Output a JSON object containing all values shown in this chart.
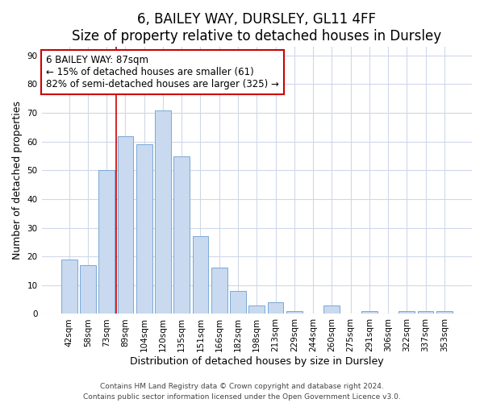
{
  "title1": "6, BAILEY WAY, DURSLEY, GL11 4FF",
  "title2": "Size of property relative to detached houses in Dursley",
  "xlabel": "Distribution of detached houses by size in Dursley",
  "ylabel": "Number of detached properties",
  "categories": [
    "42sqm",
    "58sqm",
    "73sqm",
    "89sqm",
    "104sqm",
    "120sqm",
    "135sqm",
    "151sqm",
    "166sqm",
    "182sqm",
    "198sqm",
    "213sqm",
    "229sqm",
    "244sqm",
    "260sqm",
    "275sqm",
    "291sqm",
    "306sqm",
    "322sqm",
    "337sqm",
    "353sqm"
  ],
  "values": [
    19,
    17,
    50,
    62,
    59,
    71,
    55,
    27,
    16,
    8,
    3,
    4,
    1,
    0,
    3,
    0,
    1,
    0,
    1,
    1,
    1
  ],
  "bar_color": "#c8d9f0",
  "bar_edge_color": "#7aa8d4",
  "vline_x_index": 3,
  "vline_color": "#cc0000",
  "annotation_title": "6 BAILEY WAY: 87sqm",
  "annotation_line1": "← 15% of detached houses are smaller (61)",
  "annotation_line2": "82% of semi-detached houses are larger (325) →",
  "annotation_box_facecolor": "#ffffff",
  "annotation_box_edgecolor": "#cc0000",
  "ylim": [
    0,
    93
  ],
  "yticks": [
    0,
    10,
    20,
    30,
    40,
    50,
    60,
    70,
    80,
    90
  ],
  "footnote1": "Contains HM Land Registry data © Crown copyright and database right 2024.",
  "footnote2": "Contains public sector information licensed under the Open Government Licence v3.0.",
  "bg_color": "#ffffff",
  "plot_bg_color": "#ffffff",
  "grid_color": "#d0d8e8",
  "title1_fontsize": 12,
  "title2_fontsize": 10,
  "axis_label_fontsize": 9,
  "tick_fontsize": 7.5,
  "footnote_fontsize": 6.5
}
